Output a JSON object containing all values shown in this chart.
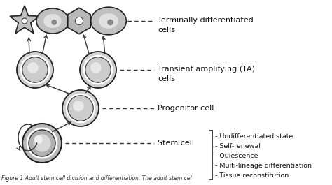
{
  "background_color": "#ffffff",
  "labels": {
    "terminally_differentiated": "Terminally differentiated\ncells",
    "transient_amplifying": "Transient amplifying (TA)\ncells",
    "progenitor": "Progenitor cell",
    "stem": "Stem cell"
  },
  "stem_properties": [
    "- Undifferentiated state",
    "- Self-renewal",
    "- Quiescence",
    "- Multi-lineage differentiation",
    "- Tissue reconstitution"
  ],
  "caption": "Figure 1 Adult stem cell division and differentiation. The adult stem cel"
}
